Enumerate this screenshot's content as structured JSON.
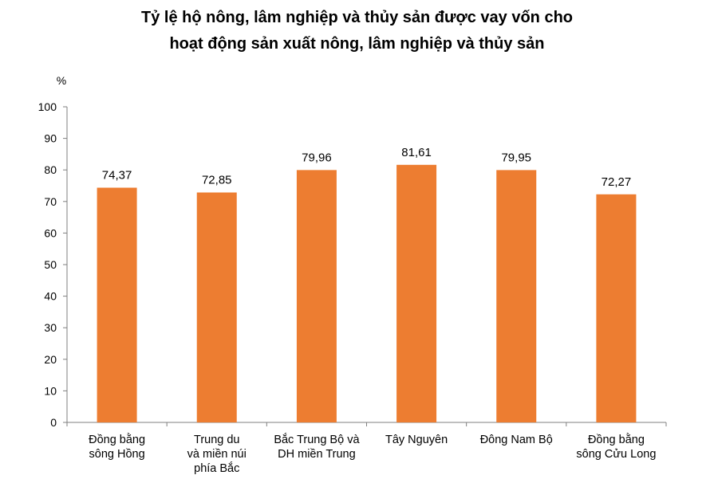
{
  "chart_data": {
    "type": "bar",
    "title_lines": [
      "Tỷ lệ hộ nông, lâm nghiệp và thủy sản được vay vốn cho",
      "hoạt động sản xuất nông, lâm nghiệp và thủy sản"
    ],
    "ylabel": "%",
    "ylim": [
      0,
      100
    ],
    "yticks": [
      0,
      10,
      20,
      30,
      40,
      50,
      60,
      70,
      80,
      90,
      100
    ],
    "categories": [
      [
        "Đồng bằng",
        "sông Hồng"
      ],
      [
        "Trung du",
        "và miền núi",
        "phía Bắc"
      ],
      [
        "Bắc Trung Bộ và",
        "DH miền Trung"
      ],
      [
        "Tây Nguyên"
      ],
      [
        "Đông Nam Bộ"
      ],
      [
        "Đồng bằng",
        "sông Cửu Long"
      ]
    ],
    "values": [
      74.37,
      72.85,
      79.96,
      81.61,
      79.95,
      72.27
    ],
    "data_labels": [
      "74,37",
      "72,85",
      "79,96",
      "81,61",
      "79,95",
      "72,27"
    ],
    "bar_color": "#ED7D31",
    "grid": false,
    "legend": "none"
  }
}
